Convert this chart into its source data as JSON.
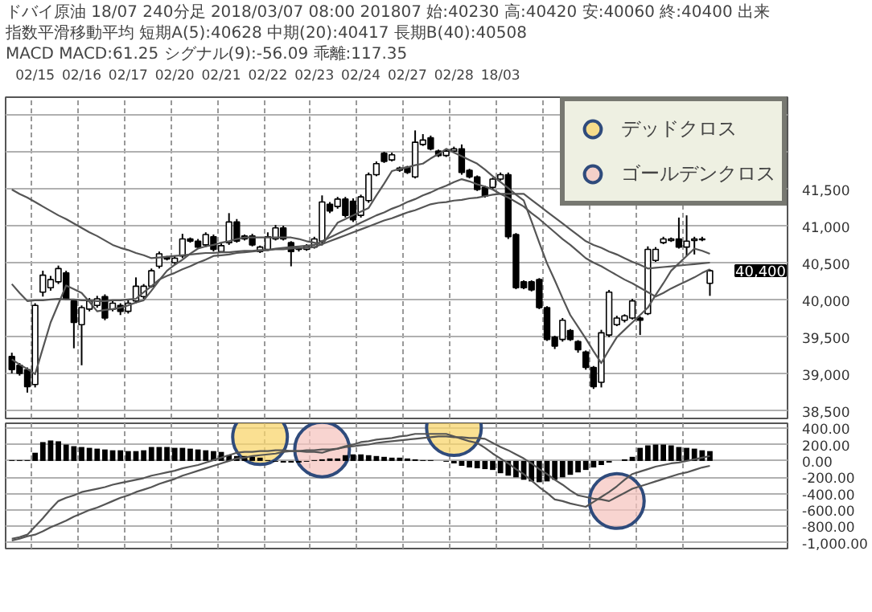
{
  "chart_data": [
    {
      "type": "candlestick",
      "title": "ドバイ原油 18/07 240分足 2018/03/07 08:00 201807 始:40230 高:40420 安:40060 終:40400 出来",
      "subtitle": "指数平滑移動平均 短期A(5):40628 中期(20):40417 長期B(40):40508",
      "annotations": [
        "MACD MACD:61.25 シグナル(9):-56.09 乖離:117.35",
        "40,400"
      ],
      "categories": [
        null,
        null,
        null,
        "02/15",
        null,
        null,
        null,
        null,
        null,
        "02/16",
        null,
        null,
        null,
        null,
        null,
        "02/17",
        null,
        null,
        null,
        null,
        null,
        "02/20",
        null,
        null,
        null,
        null,
        null,
        "02/21",
        null,
        null,
        null,
        null,
        null,
        "02/22",
        null,
        null,
        null,
        null,
        null,
        "02/23",
        null,
        null,
        null,
        null,
        null,
        "02/24",
        null,
        null,
        null,
        null,
        null,
        "02/27",
        null,
        null,
        null,
        null,
        null,
        "02/28",
        null,
        null,
        null,
        null,
        null,
        "18/03",
        null,
        null,
        null,
        null,
        null,
        null,
        null,
        null,
        null,
        null,
        null,
        null,
        null,
        null,
        null,
        null,
        null,
        null,
        null,
        null,
        null,
        null,
        null,
        null,
        null,
        null,
        null
      ],
      "ohlc": [
        [
          39240,
          39290,
          39010,
          39060
        ],
        [
          39120,
          39150,
          38980,
          39010
        ],
        [
          39060,
          39090,
          38750,
          38830
        ],
        [
          38860,
          39960,
          38820,
          39930
        ],
        [
          40110,
          40400,
          40050,
          40340
        ],
        [
          40170,
          40330,
          40130,
          40280
        ],
        [
          40250,
          40470,
          40220,
          40430
        ],
        [
          40370,
          40400,
          40000,
          40020
        ],
        [
          39990,
          40020,
          39350,
          39700
        ],
        [
          39670,
          39930,
          39120,
          39900
        ],
        [
          39880,
          40030,
          39850,
          39990
        ],
        [
          39930,
          40060,
          39900,
          40020
        ],
        [
          40050,
          40080,
          39730,
          39760
        ],
        [
          39880,
          39990,
          39850,
          39960
        ],
        [
          39930,
          39960,
          39800,
          39850
        ],
        [
          39850,
          40000,
          39820,
          39960
        ],
        [
          39990,
          40310,
          39960,
          40190
        ],
        [
          40050,
          40220,
          40020,
          40190
        ],
        [
          40190,
          40430,
          40170,
          40400
        ],
        [
          40460,
          40660,
          40430,
          40630
        ],
        [
          40580,
          40600,
          40540,
          40560
        ],
        [
          40510,
          40600,
          40490,
          40570
        ],
        [
          40600,
          40900,
          40570,
          40830
        ],
        [
          40830,
          40850,
          40780,
          40800
        ],
        [
          40800,
          40830,
          40700,
          40720
        ],
        [
          40750,
          40920,
          40720,
          40890
        ],
        [
          40860,
          40890,
          40660,
          40690
        ],
        [
          40660,
          40770,
          40640,
          40740
        ],
        [
          40780,
          41180,
          40750,
          41060
        ],
        [
          41060,
          41100,
          40780,
          40800
        ],
        [
          40870,
          40890,
          40810,
          40830
        ],
        [
          40870,
          40900,
          40730,
          40750
        ],
        [
          40660,
          40740,
          40640,
          40720
        ],
        [
          40690,
          40920,
          40670,
          40860
        ],
        [
          40830,
          41020,
          40810,
          40980
        ],
        [
          40980,
          41010,
          40810,
          40830
        ],
        [
          40780,
          40800,
          40460,
          40660
        ],
        [
          40700,
          40720,
          40660,
          40690
        ],
        [
          40690,
          40760,
          40670,
          40730
        ],
        [
          40720,
          40860,
          40700,
          40830
        ],
        [
          40800,
          41420,
          40770,
          41330
        ],
        [
          41300,
          41330,
          41180,
          41210
        ],
        [
          41270,
          41400,
          41240,
          41370
        ],
        [
          41370,
          41400,
          41120,
          41150
        ],
        [
          41340,
          41380,
          41060,
          41090
        ],
        [
          41150,
          41430,
          41120,
          41400
        ],
        [
          41350,
          41730,
          41320,
          41700
        ],
        [
          41700,
          41880,
          41680,
          41850
        ],
        [
          41990,
          42010,
          41860,
          41880
        ],
        [
          41900,
          42000,
          41880,
          41970
        ],
        [
          41760,
          41810,
          41740,
          41790
        ],
        [
          41800,
          41820,
          41710,
          41730
        ],
        [
          41670,
          42300,
          41650,
          42140
        ],
        [
          42110,
          42250,
          42090,
          42170
        ],
        [
          42200,
          42230,
          42030,
          42050
        ],
        [
          42020,
          42040,
          41940,
          41960
        ],
        [
          41960,
          42040,
          41940,
          42020
        ],
        [
          42020,
          42080,
          42000,
          42050
        ],
        [
          42050,
          42110,
          41700,
          41730
        ],
        [
          41760,
          41780,
          41650,
          41670
        ],
        [
          41670,
          41690,
          41480,
          41500
        ],
        [
          41530,
          41550,
          41390,
          41410
        ],
        [
          41530,
          41660,
          41500,
          41640
        ],
        [
          41640,
          41730,
          41620,
          41700
        ],
        [
          41700,
          41730,
          40830,
          40860
        ],
        [
          40890,
          40910,
          40150,
          40170
        ],
        [
          40250,
          40270,
          40150,
          40170
        ],
        [
          40250,
          40270,
          40120,
          40140
        ],
        [
          40280,
          40300,
          39880,
          39900
        ],
        [
          39900,
          39920,
          39450,
          39470
        ],
        [
          39500,
          39520,
          39340,
          39380
        ],
        [
          39470,
          39760,
          39440,
          39730
        ],
        [
          39590,
          39610,
          39450,
          39470
        ],
        [
          39440,
          39460,
          39290,
          39330
        ],
        [
          39300,
          39320,
          39060,
          39090
        ],
        [
          39090,
          39110,
          38800,
          38830
        ],
        [
          38890,
          39600,
          38820,
          39560
        ],
        [
          39530,
          40140,
          39500,
          40110
        ],
        [
          39670,
          39790,
          39650,
          39760
        ],
        [
          39730,
          39810,
          39700,
          39790
        ],
        [
          39760,
          40020,
          39740,
          39990
        ],
        [
          39760,
          39780,
          39530,
          39730
        ],
        [
          39820,
          40730,
          39800,
          40690
        ],
        [
          40540,
          40720,
          40520,
          40690
        ],
        [
          40780,
          40860,
          40760,
          40830
        ],
        [
          40810,
          40850,
          40790,
          40830
        ],
        [
          40830,
          41120,
          40700,
          40720
        ],
        [
          40720,
          41150,
          40600,
          40800
        ],
        [
          40810,
          40860,
          40620,
          40830
        ],
        [
          40820,
          40860,
          40800,
          40830
        ],
        [
          40230,
          40420,
          40060,
          40400
        ]
      ],
      "series": [
        {
          "type": "line",
          "color": "#555555",
          "values": [
            39200,
            39130,
            39070,
            39000,
            39350,
            39700,
            39950,
            40200,
            40150,
            40100,
            39980,
            39850,
            39870,
            39880,
            39900,
            39930,
            39970,
            40000,
            40130,
            40270,
            40400,
            40480,
            40550,
            40630,
            40700,
            40730,
            40750,
            40780,
            40800,
            40830,
            40850,
            40850,
            40850,
            40850,
            40850,
            40850,
            40850,
            40830,
            40800,
            40780,
            40750,
            40900,
            41050,
            41100,
            41150,
            41200,
            41250,
            41420,
            41580,
            41750,
            41780,
            41800,
            41830,
            41850,
            41920,
            41980,
            42050,
            42000,
            41950,
            41900,
            41850,
            41770,
            41680,
            41600,
            41520,
            41430,
            41350,
            41070,
            40780,
            40500,
            40270,
            40030,
            39800,
            39640,
            39480,
            39310,
            39150,
            39330,
            39500,
            39600,
            39700,
            39800,
            39900,
            40070,
            40230,
            40400,
            40500,
            40600,
            40700,
            40670,
            40630
          ]
        },
        {
          "type": "line",
          "color": "#555555",
          "values": [
            40220,
            40100,
            39990,
            40000,
            40000,
            40010,
            40020,
            40010,
            40010,
            40000,
            40000,
            39990,
            39990,
            40000,
            40000,
            40010,
            40020,
            40110,
            40190,
            40280,
            40330,
            40370,
            40420,
            40460,
            40510,
            40550,
            40600,
            40610,
            40620,
            40640,
            40650,
            40660,
            40670,
            40680,
            40700,
            40710,
            40720,
            40730,
            40740,
            40750,
            40800,
            40850,
            40900,
            40950,
            41000,
            41050,
            41100,
            41150,
            41190,
            41240,
            41280,
            41330,
            41370,
            41420,
            41460,
            41510,
            41550,
            41600,
            41640,
            41610,
            41570,
            41540,
            41500,
            41440,
            41390,
            41330,
            41270,
            41180,
            41100,
            41010,
            40920,
            40830,
            40750,
            40660,
            40570,
            40510,
            40460,
            40400,
            40340,
            40280,
            40230,
            40170,
            40110,
            40050,
            40100,
            40160,
            40210,
            40260,
            40310,
            40370,
            40420
          ]
        },
        {
          "type": "line",
          "color": "#555555",
          "values": [
            41500,
            41440,
            41390,
            41330,
            41270,
            41210,
            41150,
            41100,
            41040,
            40980,
            40920,
            40870,
            40810,
            40750,
            40710,
            40680,
            40640,
            40610,
            40570,
            40580,
            40590,
            40600,
            40610,
            40620,
            40630,
            40640,
            40640,
            40650,
            40650,
            40660,
            40670,
            40670,
            40680,
            40680,
            40690,
            40690,
            40700,
            40710,
            40710,
            40720,
            40760,
            40800,
            40840,
            40880,
            40920,
            40960,
            41000,
            41040,
            41080,
            41110,
            41150,
            41190,
            41220,
            41260,
            41300,
            41320,
            41330,
            41350,
            41360,
            41380,
            41390,
            41410,
            41430,
            41440,
            41440,
            41440,
            41440,
            41360,
            41280,
            41200,
            41120,
            41040,
            40960,
            40880,
            40800,
            40750,
            40710,
            40660,
            40620,
            40570,
            40520,
            40480,
            40430,
            40440,
            40450,
            40460,
            40470,
            40480,
            40490,
            40500,
            40510
          ]
        }
      ],
      "ylim": [
        38400,
        42750
      ],
      "yticks": [
        {
          "value": 38500,
          "label": "38,500"
        },
        {
          "value": 39000,
          "label": "39,000"
        },
        {
          "value": 39500,
          "label": "39,500"
        },
        {
          "value": 40000,
          "label": "40,000"
        },
        {
          "value": 40500,
          "label": "40,500"
        },
        {
          "value": 41000,
          "label": "41,000"
        },
        {
          "value": 41500,
          "label": "41,500"
        },
        {
          "value": 42000,
          "label": null
        },
        {
          "value": 42500,
          "label": null
        }
      ],
      "grid": true
    },
    {
      "type": "bar",
      "color": "#000000",
      "categories": [
        null,
        null,
        null,
        null,
        null,
        null,
        null,
        null,
        null,
        null,
        null,
        null,
        null,
        null,
        null,
        null,
        null,
        null,
        null,
        null,
        null,
        null,
        null,
        null,
        null,
        null,
        null,
        null,
        null,
        null,
        null,
        null,
        null,
        null,
        null,
        null,
        null,
        null,
        null,
        null,
        null,
        null,
        null,
        null,
        null,
        null,
        null,
        null,
        null,
        null,
        null,
        null,
        null,
        null,
        null,
        null,
        null,
        null,
        null,
        null,
        null,
        null,
        null,
        null,
        null,
        null,
        null,
        null,
        null,
        null,
        null,
        null,
        null,
        null,
        null,
        null,
        null,
        null,
        null,
        null,
        null,
        null,
        null,
        null,
        null,
        null,
        null,
        null,
        null,
        null,
        null
      ],
      "values": [
        10,
        10,
        10,
        100,
        230,
        250,
        240,
        200,
        180,
        170,
        160,
        150,
        140,
        130,
        130,
        120,
        120,
        130,
        170,
        170,
        170,
        160,
        160,
        150,
        140,
        130,
        120,
        110,
        70,
        60,
        60,
        50,
        40,
        10,
        -10,
        -20,
        -20,
        -20,
        -10,
        10,
        20,
        30,
        30,
        70,
        80,
        80,
        70,
        60,
        50,
        40,
        40,
        30,
        20,
        10,
        10,
        0,
        -10,
        -30,
        -60,
        -80,
        -90,
        -100,
        -110,
        -150,
        -180,
        -200,
        -230,
        -250,
        -260,
        -250,
        -230,
        -200,
        -170,
        -140,
        -110,
        -80,
        -50,
        -20,
        0,
        20,
        50,
        160,
        190,
        200,
        200,
        190,
        170,
        160,
        150,
        130,
        120
      ],
      "series": [
        {
          "type": "line",
          "color": "#555555",
          "values": [
            -950,
            -930,
            -900,
            -800,
            -700,
            -590,
            -490,
            -450,
            -420,
            -380,
            -360,
            -340,
            -320,
            -290,
            -270,
            -250,
            -230,
            -210,
            -180,
            -160,
            -140,
            -120,
            -90,
            -70,
            -50,
            -20,
            10,
            40,
            70,
            100,
            110,
            110,
            120,
            120,
            130,
            130,
            120,
            120,
            110,
            110,
            100,
            130,
            150,
            180,
            200,
            230,
            240,
            260,
            270,
            280,
            300,
            310,
            330,
            330,
            330,
            330,
            330,
            300,
            270,
            240,
            220,
            160,
            90,
            30,
            -30,
            -100,
            -160,
            -240,
            -320,
            -390,
            -470,
            -490,
            -520,
            -540,
            -560,
            -500,
            -440,
            -380,
            -310,
            -230,
            -160,
            -130,
            -100,
            -70,
            -50,
            -30,
            -20,
            0,
            20,
            40,
            60
          ]
        },
        {
          "type": "line",
          "color": "#555555",
          "values": [
            -970,
            -950,
            -920,
            -900,
            -860,
            -810,
            -770,
            -730,
            -680,
            -640,
            -600,
            -570,
            -530,
            -490,
            -450,
            -420,
            -380,
            -350,
            -320,
            -280,
            -250,
            -220,
            -180,
            -150,
            -120,
            -90,
            -60,
            -30,
            0,
            30,
            40,
            60,
            70,
            80,
            90,
            110,
            120,
            120,
            130,
            130,
            140,
            140,
            150,
            170,
            180,
            190,
            200,
            220,
            230,
            240,
            250,
            260,
            270,
            280,
            290,
            300,
            300,
            290,
            290,
            280,
            280,
            270,
            220,
            170,
            130,
            80,
            30,
            -30,
            -100,
            -160,
            -230,
            -290,
            -360,
            -420,
            -440,
            -460,
            -470,
            -490,
            -440,
            -390,
            -340,
            -310,
            -280,
            -250,
            -220,
            -190,
            -160,
            -140,
            -110,
            -80,
            -60
          ]
        },
        {
          "type": "scatter",
          "name": "デッドクロス",
          "color": "#f8d66d",
          "values": [
            null,
            null,
            null,
            null,
            null,
            null,
            null,
            null,
            null,
            null,
            null,
            null,
            null,
            null,
            null,
            null,
            null,
            null,
            null,
            null,
            null,
            null,
            null,
            null,
            null,
            null,
            null,
            null,
            null,
            null,
            null,
            null,
            290,
            null,
            null,
            null,
            null,
            null,
            null,
            null,
            null,
            null,
            null,
            null,
            null,
            null,
            null,
            null,
            null,
            null,
            null,
            null,
            null,
            null,
            null,
            null,
            null,
            400,
            null,
            null,
            null,
            null,
            null,
            null,
            null,
            null,
            null,
            null,
            null,
            null,
            null,
            null,
            null,
            null,
            null,
            null,
            null,
            null,
            null,
            null,
            null,
            null,
            null,
            null,
            null,
            null,
            null,
            null,
            null,
            null,
            null
          ]
        },
        {
          "type": "scatter",
          "name": "ゴールデンクロス",
          "color": "#f5c6c0",
          "values": [
            null,
            null,
            null,
            null,
            null,
            null,
            null,
            null,
            null,
            null,
            null,
            null,
            null,
            null,
            null,
            null,
            null,
            null,
            null,
            null,
            null,
            null,
            null,
            null,
            null,
            null,
            null,
            null,
            null,
            null,
            null,
            null,
            null,
            null,
            null,
            null,
            null,
            null,
            null,
            null,
            140,
            null,
            null,
            null,
            null,
            null,
            null,
            null,
            null,
            null,
            null,
            null,
            null,
            null,
            null,
            null,
            null,
            null,
            null,
            null,
            null,
            null,
            null,
            null,
            null,
            null,
            null,
            null,
            null,
            null,
            null,
            null,
            null,
            null,
            null,
            null,
            null,
            null,
            -490,
            null,
            null,
            null,
            null,
            null,
            null,
            null,
            null,
            null,
            null,
            null,
            null
          ]
        }
      ],
      "legend": "top right",
      "ylim": [
        -1070,
        460
      ],
      "yticks": [
        {
          "value": 400,
          "label": "400.00"
        },
        {
          "value": 200,
          "label": "200.00"
        },
        {
          "value": 0,
          "label": "0.00"
        },
        {
          "value": -200,
          "label": "-200.00"
        },
        {
          "value": -400,
          "label": "-400.00"
        },
        {
          "value": -600,
          "label": "-600.00"
        },
        {
          "value": -800,
          "label": "-800.00"
        },
        {
          "value": -1000,
          "label": "-1,000.00"
        }
      ],
      "tick_labels": "y",
      "grid": true
    }
  ]
}
